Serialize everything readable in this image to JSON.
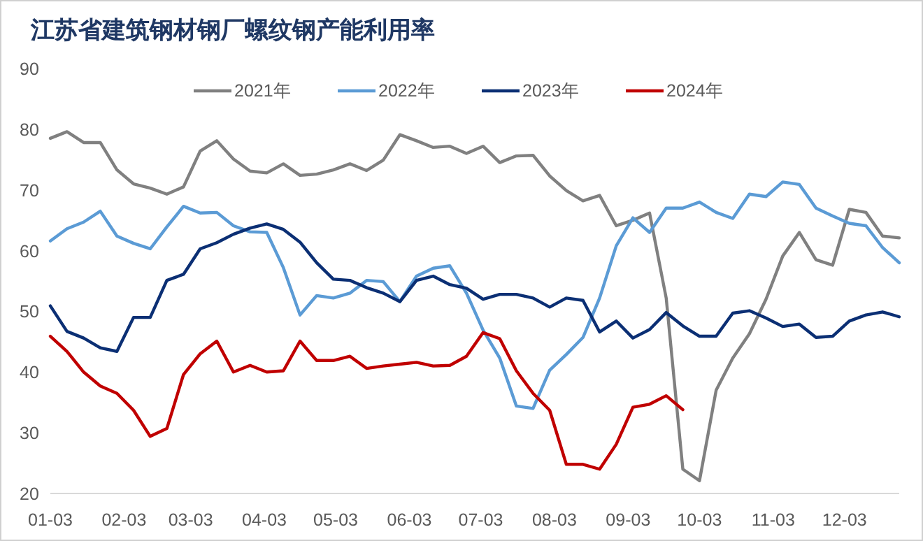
{
  "chart_data": {
    "type": "line",
    "title": "江苏省建筑钢材钢厂螺纹钢产能利用率",
    "x": [
      "--01-03",
      "--01-10",
      "--01-17",
      "--01-24",
      "--01-31",
      "--02-07",
      "--02-14",
      "--02-21",
      "--02-28",
      "--03-07",
      "--03-14",
      "--03-21",
      "--03-28",
      "--04-04",
      "--04-11",
      "--04-18",
      "--04-25",
      "--05-02",
      "--05-09",
      "--05-16",
      "--05-23",
      "--05-30",
      "--06-06",
      "--06-13",
      "--06-20",
      "--06-27",
      "--07-04",
      "--07-11",
      "--07-18",
      "--07-25",
      "--08-01",
      "--08-08",
      "--08-15",
      "--08-22",
      "--08-29",
      "--09-05",
      "--09-12",
      "--09-19",
      "--09-26",
      "--10-03",
      "--10-10",
      "--10-17",
      "--10-24",
      "--10-31",
      "--11-07",
      "--11-14",
      "--11-21",
      "--11-28",
      "--12-05",
      "--12-12",
      "--12-19",
      "--12-26"
    ],
    "series": [
      {
        "name": "2021年",
        "color": "#808080",
        "values": [
          78.5,
          79.6,
          77.8,
          77.8,
          73.3,
          71.0,
          70.3,
          69.3,
          70.5,
          76.4,
          78.1,
          75.1,
          73.1,
          72.8,
          74.3,
          72.4,
          72.6,
          73.3,
          74.3,
          73.2,
          74.9,
          79.1,
          78.1,
          77.0,
          77.2,
          76.0,
          77.2,
          74.5,
          75.6,
          75.7,
          72.3,
          69.9,
          68.2,
          69.1,
          64.1,
          65.0,
          66.2,
          52.2,
          24.0,
          22.1,
          37.0,
          42.3,
          46.3,
          52.0,
          59.1,
          63.0,
          58.5,
          57.6,
          66.8,
          66.3,
          62.4,
          62.1
        ]
      },
      {
        "name": "2022年",
        "color": "#5b9bd5",
        "values": [
          61.6,
          63.6,
          64.7,
          66.5,
          62.4,
          61.2,
          60.3,
          63.9,
          67.3,
          66.2,
          66.3,
          64.1,
          63.1,
          63.0,
          57.2,
          49.4,
          52.6,
          52.2,
          53.0,
          55.1,
          54.9,
          51.6,
          55.8,
          57.1,
          57.5,
          53.0,
          46.9,
          42.3,
          34.4,
          34.0,
          40.3,
          42.9,
          45.7,
          52.2,
          60.8,
          65.4,
          63.0,
          67.0,
          67.0,
          68.0,
          66.3,
          65.3,
          69.3,
          68.9,
          71.3,
          70.9,
          67.0,
          65.7,
          64.5,
          64.1,
          60.5,
          58.0
        ]
      },
      {
        "name": "2023年",
        "color": "#0b2f74",
        "values": [
          50.9,
          46.7,
          45.6,
          44.0,
          43.4,
          49.0,
          49.0,
          55.1,
          56.1,
          60.3,
          61.3,
          62.7,
          63.7,
          64.4,
          63.5,
          61.4,
          58.0,
          55.3,
          55.1,
          53.9,
          53.0,
          51.6,
          55.1,
          55.8,
          54.4,
          53.8,
          52.0,
          52.8,
          52.8,
          52.2,
          50.7,
          52.2,
          51.8,
          46.6,
          48.4,
          45.6,
          47.0,
          49.8,
          47.6,
          45.9,
          45.9,
          49.7,
          50.1,
          48.9,
          47.5,
          47.9,
          45.7,
          45.9,
          48.4,
          49.4,
          49.9,
          49.1
        ]
      },
      {
        "name": "2024年",
        "color": "#c00000",
        "values": [
          45.9,
          43.4,
          40.0,
          37.7,
          36.5,
          33.7,
          29.4,
          30.7,
          39.6,
          43.0,
          45.1,
          40.0,
          41.1,
          40.0,
          40.2,
          45.1,
          41.9,
          41.9,
          42.6,
          40.6,
          41.0,
          41.3,
          41.6,
          41.0,
          41.1,
          42.6,
          46.5,
          45.5,
          40.2,
          36.5,
          33.7,
          24.8,
          24.8,
          24.0,
          28.1,
          34.2,
          34.7,
          36.1,
          33.8,
          null,
          null,
          null,
          null,
          null,
          null,
          null,
          null,
          null,
          null,
          null,
          null,
          null
        ]
      }
    ],
    "xlim": [
      "--01-03",
      "--12-26"
    ],
    "xticks": [
      {
        "value": "--01-03",
        "label": "01-03"
      },
      {
        "value": "--02-03",
        "label": "02-03"
      },
      {
        "value": "--03-03",
        "label": "03-03"
      },
      {
        "value": "--04-03",
        "label": "04-03"
      },
      {
        "value": "--05-03",
        "label": "05-03"
      },
      {
        "value": "--06-03",
        "label": "06-03"
      },
      {
        "value": "--07-03",
        "label": "07-03"
      },
      {
        "value": "--08-03",
        "label": "08-03"
      },
      {
        "value": "--09-03",
        "label": "09-03"
      },
      {
        "value": "--10-03",
        "label": "10-03"
      },
      {
        "value": "--11-03",
        "label": "11-03"
      },
      {
        "value": "--12-03",
        "label": "12-03"
      }
    ],
    "ylim": [
      20,
      90
    ],
    "yticks": [
      20,
      30,
      40,
      50,
      60,
      70,
      80,
      90
    ],
    "legend": "top",
    "grid": false,
    "marker": "none",
    "line_style": "solid"
  }
}
